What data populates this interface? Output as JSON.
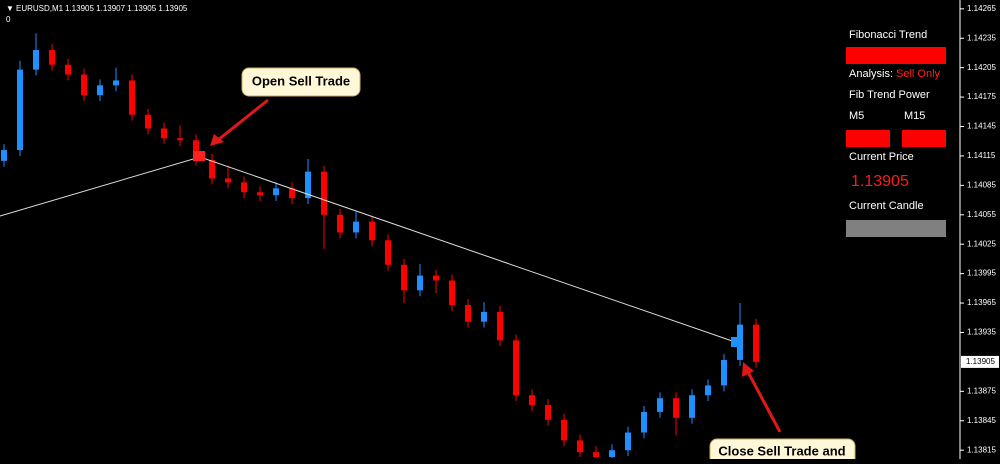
{
  "header": {
    "symbol": "EURUSD,M1",
    "quote": "1.13905 1.13907 1.13905 1.13905",
    "sub": "0"
  },
  "chart_data": {
    "type": "candlestick",
    "open": [
      1.1411,
      1.14121,
      1.14203,
      1.14223,
      1.14208,
      1.14198,
      1.14177,
      1.14187,
      1.14192,
      1.14157,
      1.14143,
      1.14133,
      1.14131,
      1.14111,
      1.14092,
      1.14088,
      1.14078,
      1.14075,
      1.14082,
      1.14072,
      1.14099,
      1.14055,
      1.14037,
      1.14048,
      1.14029,
      1.14004,
      1.13978,
      1.13993,
      1.13988,
      1.13963,
      1.13946,
      1.13956,
      1.13927,
      1.13871,
      1.13861,
      1.13846,
      1.13825,
      1.13813,
      1.13808,
      1.13815,
      1.13833,
      1.13854,
      1.13868,
      1.13848,
      1.13871,
      1.13881,
      1.13907,
      1.13943
    ],
    "high": [
      1.14127,
      1.14212,
      1.1424,
      1.14229,
      1.14214,
      1.14204,
      1.14193,
      1.14205,
      1.14198,
      1.14163,
      1.14149,
      1.14146,
      1.14137,
      1.14117,
      1.14105,
      1.14094,
      1.14084,
      1.14088,
      1.14088,
      1.14112,
      1.14105,
      1.14061,
      1.14058,
      1.14054,
      1.14035,
      1.1401,
      1.14005,
      1.13999,
      1.13994,
      1.13969,
      1.13966,
      1.13962,
      1.13933,
      1.13877,
      1.13867,
      1.13852,
      1.13831,
      1.13819,
      1.13821,
      1.13839,
      1.1386,
      1.13874,
      1.13874,
      1.13877,
      1.13887,
      1.13913,
      1.13965,
      1.13949
    ],
    "low": [
      1.14104,
      1.14115,
      1.14197,
      1.14202,
      1.14192,
      1.14171,
      1.14171,
      1.14181,
      1.14151,
      1.14137,
      1.14127,
      1.14125,
      1.14105,
      1.14086,
      1.14082,
      1.14072,
      1.14069,
      1.14069,
      1.14066,
      1.14066,
      1.1402,
      1.14031,
      1.14031,
      1.14023,
      1.13998,
      1.13965,
      1.13972,
      1.13975,
      1.13957,
      1.1394,
      1.1394,
      1.13921,
      1.13865,
      1.13855,
      1.1384,
      1.13819,
      1.13808,
      1.13807,
      1.13807,
      1.13809,
      1.13827,
      1.13848,
      1.1383,
      1.13842,
      1.13865,
      1.13875,
      1.13901,
      1.13899
    ],
    "close": [
      1.14121,
      1.14203,
      1.14223,
      1.14208,
      1.14198,
      1.14177,
      1.14187,
      1.14192,
      1.14157,
      1.14143,
      1.14133,
      1.14131,
      1.14111,
      1.14092,
      1.14088,
      1.14078,
      1.14075,
      1.14082,
      1.14072,
      1.14099,
      1.14055,
      1.14037,
      1.14048,
      1.14029,
      1.14004,
      1.13978,
      1.13993,
      1.13988,
      1.13963,
      1.13946,
      1.13956,
      1.13927,
      1.13871,
      1.13861,
      1.13846,
      1.13825,
      1.13813,
      1.13808,
      1.13815,
      1.13833,
      1.13854,
      1.13868,
      1.13848,
      1.13871,
      1.13881,
      1.13907,
      1.13943,
      1.13905
    ],
    "up_color": "#1e90ff",
    "down_color": "#ff0000",
    "ylim": [
      1.13806,
      1.14274
    ],
    "yticks": [
      1.14265,
      1.14235,
      1.14205,
      1.14175,
      1.14145,
      1.14115,
      1.14085,
      1.14055,
      1.14025,
      1.13995,
      1.13965,
      1.13935,
      1.13875,
      1.13845,
      1.13815
    ],
    "current_price": 1.13905
  },
  "panel": {
    "title": "Fibonacci Trend",
    "analysis_label": "Analysis:",
    "analysis_value": "Sell Only",
    "power_title": "Fib Trend Power",
    "m5": "M5",
    "m15": "M15",
    "price_title": "Current Price",
    "candle_title": "Current Candle"
  },
  "callouts": {
    "open": "Open Sell Trade",
    "close": "Close Sell Trade and"
  }
}
